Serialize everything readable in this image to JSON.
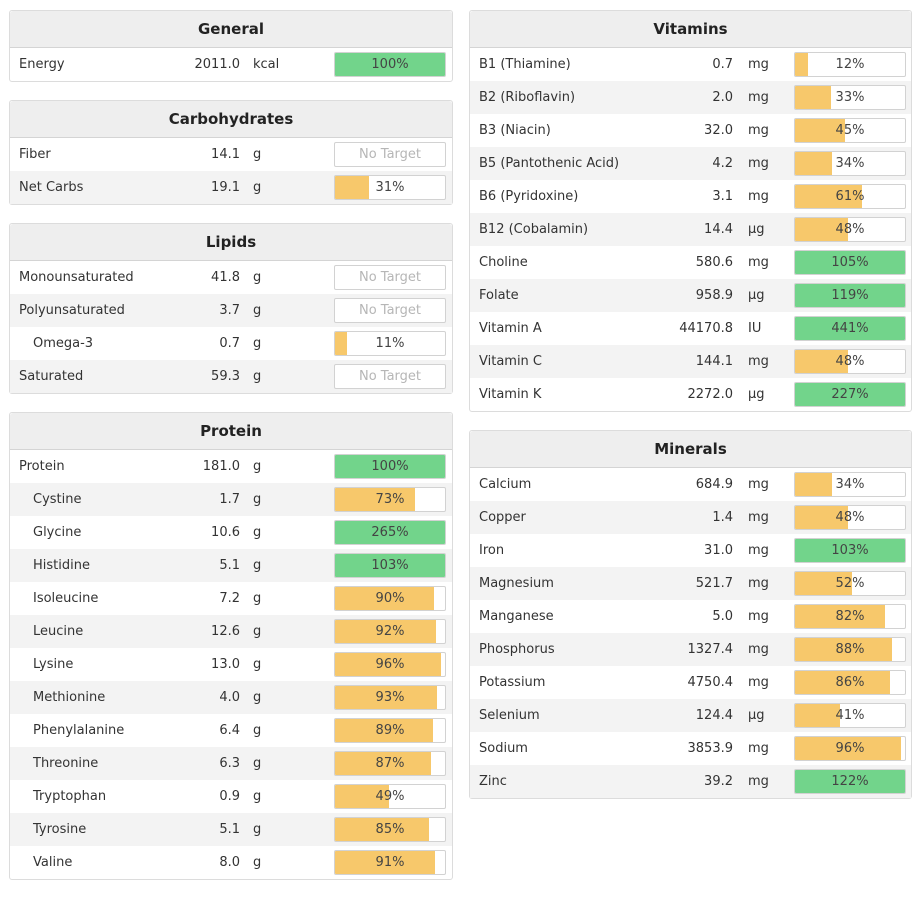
{
  "colors": {
    "green": "#72d48b",
    "orange": "#f7c86b"
  },
  "left": [
    {
      "title": "General",
      "rows": [
        {
          "name": "Energy",
          "amount": "2011.0",
          "unit": "kcal",
          "pct": 100,
          "label": "100%",
          "color": "green"
        }
      ]
    },
    {
      "title": "Carbohydrates",
      "rows": [
        {
          "name": "Fiber",
          "amount": "14.1",
          "unit": "g",
          "pct": 0,
          "label": "No Target",
          "color": "none"
        },
        {
          "name": "Net Carbs",
          "amount": "19.1",
          "unit": "g",
          "pct": 31,
          "label": "31%",
          "color": "orange"
        }
      ]
    },
    {
      "title": "Lipids",
      "rows": [
        {
          "name": "Monounsaturated",
          "amount": "41.8",
          "unit": "g",
          "pct": 0,
          "label": "No Target",
          "color": "none"
        },
        {
          "name": "Polyunsaturated",
          "amount": "3.7",
          "unit": "g",
          "pct": 0,
          "label": "No Target",
          "color": "none"
        },
        {
          "name": "Omega-3",
          "amount": "0.7",
          "unit": "g",
          "pct": 11,
          "label": "11%",
          "color": "orange",
          "sub": true
        },
        {
          "name": "Saturated",
          "amount": "59.3",
          "unit": "g",
          "pct": 0,
          "label": "No Target",
          "color": "none"
        }
      ]
    },
    {
      "title": "Protein",
      "rows": [
        {
          "name": "Protein",
          "amount": "181.0",
          "unit": "g",
          "pct": 100,
          "label": "100%",
          "color": "green"
        },
        {
          "name": "Cystine",
          "amount": "1.7",
          "unit": "g",
          "pct": 73,
          "label": "73%",
          "color": "orange",
          "sub": true
        },
        {
          "name": "Glycine",
          "amount": "10.6",
          "unit": "g",
          "pct": 100,
          "label": "265%",
          "color": "green",
          "sub": true
        },
        {
          "name": "Histidine",
          "amount": "5.1",
          "unit": "g",
          "pct": 100,
          "label": "103%",
          "color": "green",
          "sub": true
        },
        {
          "name": "Isoleucine",
          "amount": "7.2",
          "unit": "g",
          "pct": 90,
          "label": "90%",
          "color": "orange",
          "sub": true
        },
        {
          "name": "Leucine",
          "amount": "12.6",
          "unit": "g",
          "pct": 92,
          "label": "92%",
          "color": "orange",
          "sub": true
        },
        {
          "name": "Lysine",
          "amount": "13.0",
          "unit": "g",
          "pct": 96,
          "label": "96%",
          "color": "orange",
          "sub": true
        },
        {
          "name": "Methionine",
          "amount": "4.0",
          "unit": "g",
          "pct": 93,
          "label": "93%",
          "color": "orange",
          "sub": true
        },
        {
          "name": "Phenylalanine",
          "amount": "6.4",
          "unit": "g",
          "pct": 89,
          "label": "89%",
          "color": "orange",
          "sub": true
        },
        {
          "name": "Threonine",
          "amount": "6.3",
          "unit": "g",
          "pct": 87,
          "label": "87%",
          "color": "orange",
          "sub": true
        },
        {
          "name": "Tryptophan",
          "amount": "0.9",
          "unit": "g",
          "pct": 49,
          "label": "49%",
          "color": "orange",
          "sub": true
        },
        {
          "name": "Tyrosine",
          "amount": "5.1",
          "unit": "g",
          "pct": 85,
          "label": "85%",
          "color": "orange",
          "sub": true
        },
        {
          "name": "Valine",
          "amount": "8.0",
          "unit": "g",
          "pct": 91,
          "label": "91%",
          "color": "orange",
          "sub": true
        }
      ]
    }
  ],
  "right": [
    {
      "title": "Vitamins",
      "rows": [
        {
          "name": "B1 (Thiamine)",
          "amount": "0.7",
          "unit": "mg",
          "pct": 12,
          "label": "12%",
          "color": "orange"
        },
        {
          "name": "B2 (Riboflavin)",
          "amount": "2.0",
          "unit": "mg",
          "pct": 33,
          "label": "33%",
          "color": "orange"
        },
        {
          "name": "B3 (Niacin)",
          "amount": "32.0",
          "unit": "mg",
          "pct": 45,
          "label": "45%",
          "color": "orange"
        },
        {
          "name": "B5 (Pantothenic Acid)",
          "amount": "4.2",
          "unit": "mg",
          "pct": 34,
          "label": "34%",
          "color": "orange"
        },
        {
          "name": "B6 (Pyridoxine)",
          "amount": "3.1",
          "unit": "mg",
          "pct": 61,
          "label": "61%",
          "color": "orange"
        },
        {
          "name": "B12 (Cobalamin)",
          "amount": "14.4",
          "unit": "µg",
          "pct": 48,
          "label": "48%",
          "color": "orange"
        },
        {
          "name": "Choline",
          "amount": "580.6",
          "unit": "mg",
          "pct": 100,
          "label": "105%",
          "color": "green"
        },
        {
          "name": "Folate",
          "amount": "958.9",
          "unit": "µg",
          "pct": 100,
          "label": "119%",
          "color": "green"
        },
        {
          "name": "Vitamin A",
          "amount": "44170.8",
          "unit": "IU",
          "pct": 100,
          "label": "441%",
          "color": "green"
        },
        {
          "name": "Vitamin C",
          "amount": "144.1",
          "unit": "mg",
          "pct": 48,
          "label": "48%",
          "color": "orange"
        },
        {
          "name": "Vitamin K",
          "amount": "2272.0",
          "unit": "µg",
          "pct": 100,
          "label": "227%",
          "color": "green"
        }
      ]
    },
    {
      "title": "Minerals",
      "rows": [
        {
          "name": "Calcium",
          "amount": "684.9",
          "unit": "mg",
          "pct": 34,
          "label": "34%",
          "color": "orange"
        },
        {
          "name": "Copper",
          "amount": "1.4",
          "unit": "mg",
          "pct": 48,
          "label": "48%",
          "color": "orange"
        },
        {
          "name": "Iron",
          "amount": "31.0",
          "unit": "mg",
          "pct": 100,
          "label": "103%",
          "color": "green"
        },
        {
          "name": "Magnesium",
          "amount": "521.7",
          "unit": "mg",
          "pct": 52,
          "label": "52%",
          "color": "orange"
        },
        {
          "name": "Manganese",
          "amount": "5.0",
          "unit": "mg",
          "pct": 82,
          "label": "82%",
          "color": "orange"
        },
        {
          "name": "Phosphorus",
          "amount": "1327.4",
          "unit": "mg",
          "pct": 88,
          "label": "88%",
          "color": "orange"
        },
        {
          "name": "Potassium",
          "amount": "4750.4",
          "unit": "mg",
          "pct": 86,
          "label": "86%",
          "color": "orange"
        },
        {
          "name": "Selenium",
          "amount": "124.4",
          "unit": "µg",
          "pct": 41,
          "label": "41%",
          "color": "orange"
        },
        {
          "name": "Sodium",
          "amount": "3853.9",
          "unit": "mg",
          "pct": 96,
          "label": "96%",
          "color": "orange"
        },
        {
          "name": "Zinc",
          "amount": "39.2",
          "unit": "mg",
          "pct": 100,
          "label": "122%",
          "color": "green"
        }
      ]
    }
  ]
}
